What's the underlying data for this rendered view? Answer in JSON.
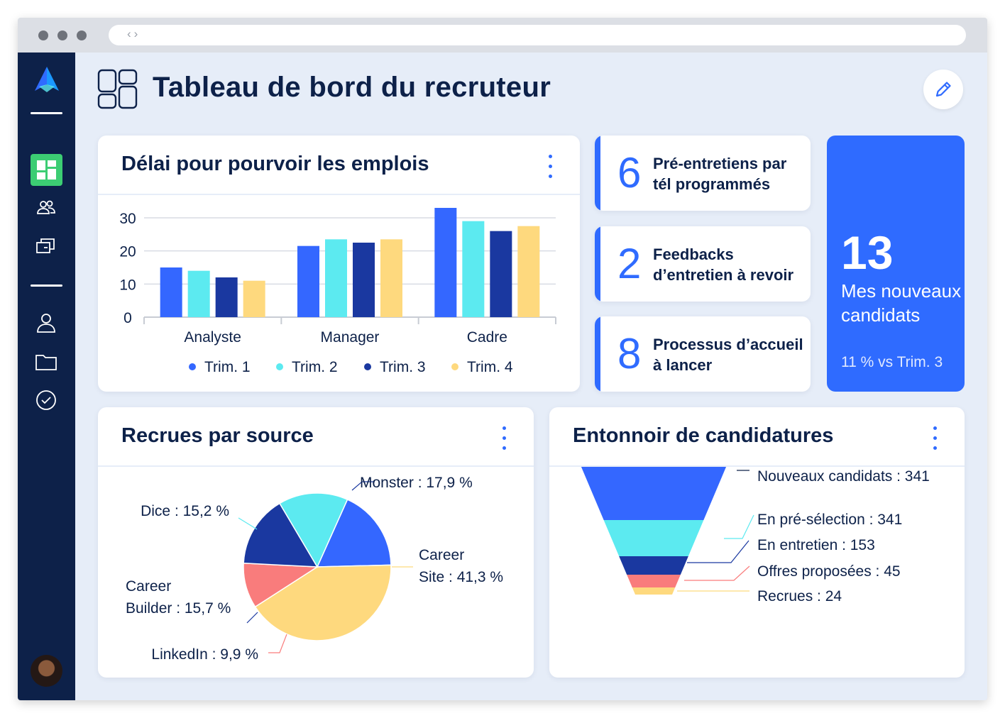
{
  "header": {
    "title": "Tableau de bord du recruteur"
  },
  "sidebar": {
    "items": [
      "dashboard-icon",
      "team-icon",
      "jobs-icon",
      "user-icon",
      "folder-icon",
      "check-circle-icon"
    ]
  },
  "colors": {
    "q1": "#3467ff",
    "q2": "#5ceaf0",
    "q3": "#1a38a0",
    "q4": "#fed97e",
    "accent": "#2f6bff",
    "navy": "#0d2149",
    "coral": "#f97c7c"
  },
  "bar_card": {
    "title": "Délai pour pourvoir les emplois",
    "legend": [
      "Trim. 1",
      "Trim. 2",
      "Trim. 3",
      "Trim. 4"
    ]
  },
  "stats": [
    {
      "value": "6",
      "label": "Pré-entretiens par tél programmés"
    },
    {
      "value": "2",
      "label": "Feedbacks d’entretien à revoir"
    },
    {
      "value": "8",
      "label": "Processus d’accueil à lancer"
    }
  ],
  "highlight": {
    "value": "13",
    "label": "Mes nouveaux candidats",
    "sub": "11 % vs Trim. 3"
  },
  "pie_card": {
    "title": "Recrues par source"
  },
  "funnel_card": {
    "title": "Entonnoir de candidatures"
  },
  "chart_data": [
    {
      "type": "bar",
      "title": "Délai pour pourvoir les emplois",
      "categories": [
        "Analyste",
        "Manager",
        "Cadre"
      ],
      "series": [
        {
          "name": "Trim. 1",
          "values": [
            15,
            21.5,
            33
          ]
        },
        {
          "name": "Trim. 2",
          "values": [
            14,
            23.5,
            29
          ]
        },
        {
          "name": "Trim. 3",
          "values": [
            12,
            22.5,
            26
          ]
        },
        {
          "name": "Trim. 4",
          "values": [
            11,
            23.5,
            27.5
          ]
        }
      ],
      "yticks": [
        0,
        10,
        20,
        30
      ],
      "ylim": [
        0,
        33
      ],
      "grid": true,
      "legend_position": "bottom"
    },
    {
      "type": "pie",
      "title": "Recrues par source",
      "slices": [
        {
          "label": "Monster : 17,9 %",
          "value": 17.9
        },
        {
          "label": "Career Site : 41,3 %",
          "value": 41.3
        },
        {
          "label": "LinkedIn : 9,9 %",
          "value": 9.9
        },
        {
          "label": "Career Builder : 15,7 %",
          "value": 15.7
        },
        {
          "label": "Dice : 15,2 %",
          "value": 15.2
        }
      ]
    },
    {
      "type": "bar",
      "title": "Entonnoir de candidatures",
      "categories": [
        "Nouveaux candidats",
        "En pré-sélection",
        "En entretien",
        "Offres proposées",
        "Recrues"
      ],
      "values": [
        341,
        341,
        153,
        45,
        24
      ],
      "labels": [
        "Nouveaux candidats : 341",
        "En pré-sélection : 341",
        "En entretien : 153",
        "Offres proposées : 45",
        "Recrues : 24"
      ]
    }
  ]
}
